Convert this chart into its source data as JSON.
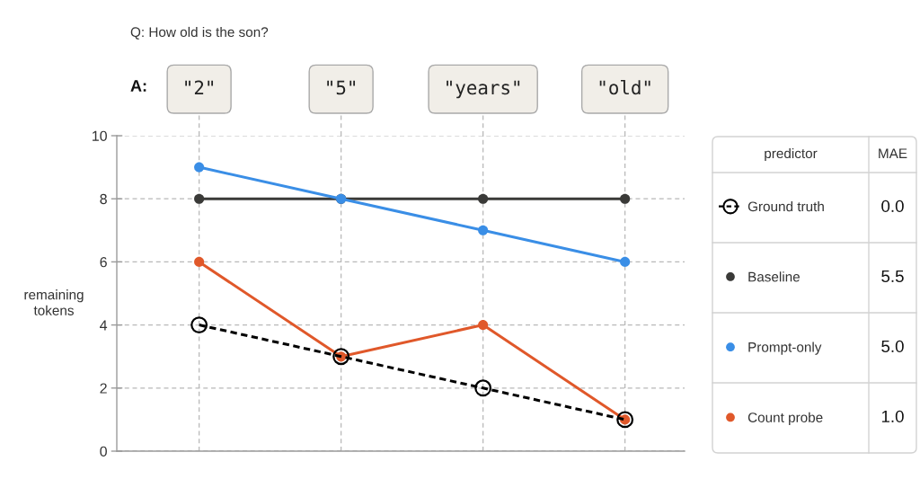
{
  "chart_data": {
    "type": "line",
    "title": "Q: How old is the son?",
    "ylabel": "remaining\ntokens",
    "legend_title": "predictor",
    "annotations": [
      "A:",
      "MAE",
      "0.0",
      "5.5",
      "5.0",
      "1.0"
    ],
    "categories": [
      "\"2\"",
      "\"5\"",
      "\"years\"",
      "\"old\""
    ],
    "series": [
      {
        "name": "Ground truth",
        "color": "#000000",
        "values": [
          4,
          3,
          2,
          1
        ],
        "line_style": "dashed"
      },
      {
        "name": "Baseline",
        "color": "#3a3a38",
        "values": [
          8,
          8,
          8,
          8
        ]
      },
      {
        "name": "Prompt-only",
        "color": "#3a8ee6",
        "values": [
          9,
          8,
          7,
          6
        ]
      },
      {
        "name": "Count probe",
        "color": "#e0582a",
        "values": [
          6,
          3,
          4,
          1
        ]
      }
    ],
    "ylim": [
      0,
      10
    ],
    "yticks": [
      0,
      2,
      4,
      6,
      8,
      10
    ],
    "grid": true,
    "legend": "right",
    "marker": "circle",
    "line_style": "solid"
  }
}
